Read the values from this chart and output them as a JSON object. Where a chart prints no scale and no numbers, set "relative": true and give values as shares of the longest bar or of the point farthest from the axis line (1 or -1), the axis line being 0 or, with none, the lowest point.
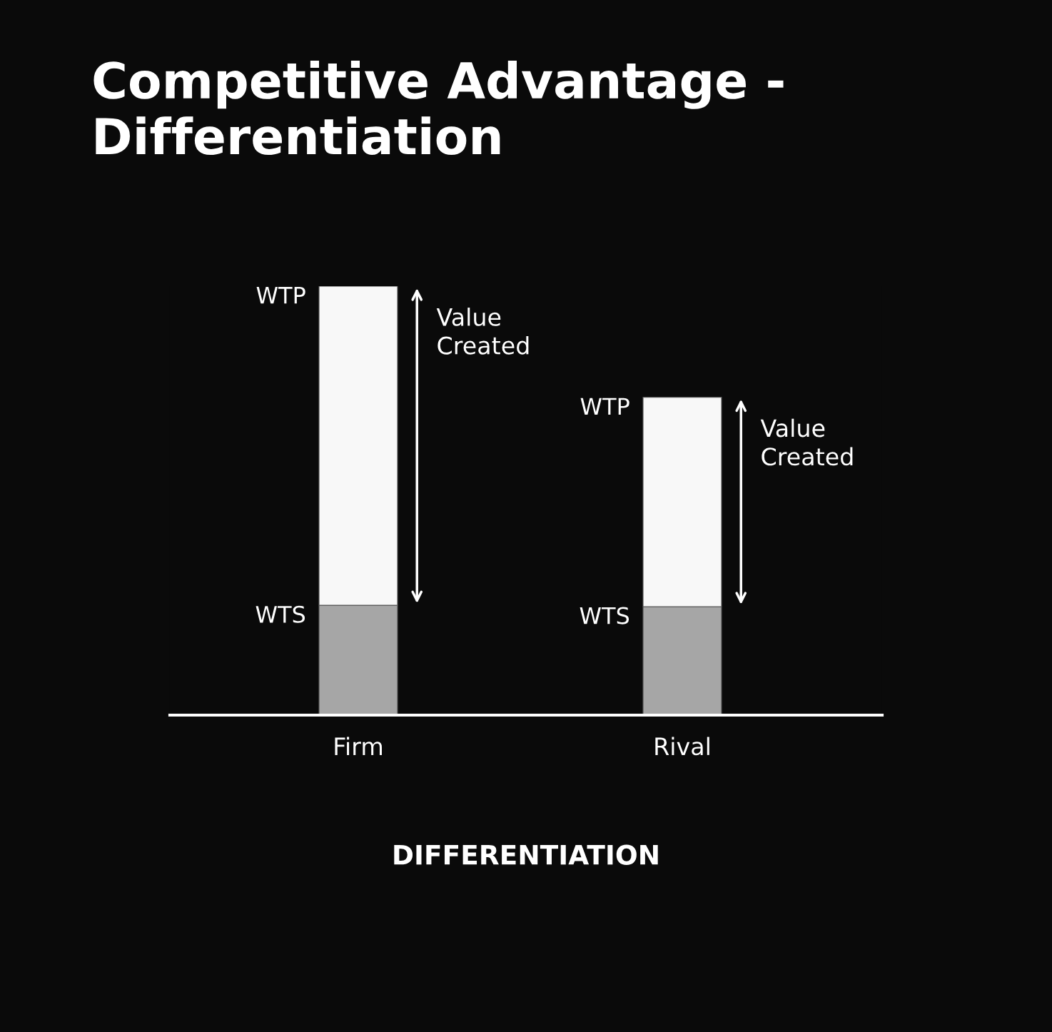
{
  "chart_data": {
    "type": "bar",
    "title": "Competitive Advantage -\nDifferentiation",
    "xlabel": "DIFFERENTIATION",
    "categories": [
      "Firm",
      "Rival"
    ],
    "relative": true,
    "stacked": true,
    "series": [
      {
        "color": "#a6a6a6",
        "values": [
          0.256,
          0.253
        ]
      },
      {
        "color": "#f8f8f8",
        "values": [
          0.744,
          0.488
        ]
      }
    ],
    "annotations": [
      {
        "text": "WTP",
        "x": "Firm",
        "y": 1.0
      },
      {
        "text": "WTS",
        "x": "Firm",
        "y": 0.256
      },
      "Value\nCreated",
      {
        "text": "WTP",
        "x": "Rival",
        "y": 0.741
      },
      {
        "text": "WTS",
        "x": "Rival",
        "y": 0.253
      },
      "Value\nCreated"
    ],
    "grid": false,
    "legend": false
  }
}
